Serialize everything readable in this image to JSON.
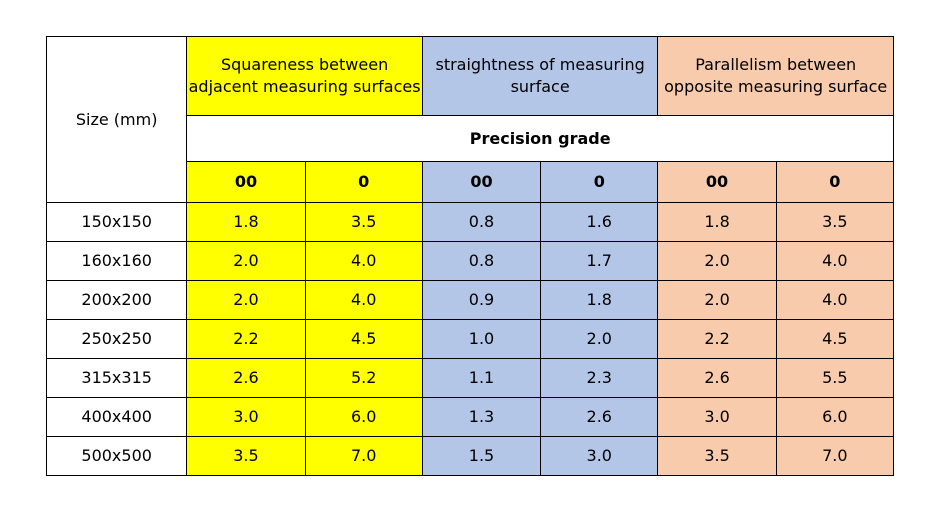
{
  "colors": {
    "squareness": "#ffff00",
    "straightness": "#b4c6e7",
    "parallelism": "#f8cbad",
    "white": "#ffffff",
    "border": "#000000"
  },
  "header": {
    "size": "Size (mm)",
    "groups": [
      "Squareness between adjacent measuring surfaces",
      "straightness of measuring surface",
      "Parallelism between opposite measuring surface"
    ],
    "precision": "Precision grade",
    "grades": [
      "00",
      "0",
      "00",
      "0",
      "00",
      "0"
    ]
  },
  "rows": [
    {
      "size": "150x150",
      "values": [
        "1.8",
        "3.5",
        "0.8",
        "1.6",
        "1.8",
        "3.5"
      ]
    },
    {
      "size": "160x160",
      "values": [
        "2.0",
        "4.0",
        "0.8",
        "1.7",
        "2.0",
        "4.0"
      ]
    },
    {
      "size": "200x200",
      "values": [
        "2.0",
        "4.0",
        "0.9",
        "1.8",
        "2.0",
        "4.0"
      ]
    },
    {
      "size": "250x250",
      "values": [
        "2.2",
        "4.5",
        "1.0",
        "2.0",
        "2.2",
        "4.5"
      ]
    },
    {
      "size": "315x315",
      "values": [
        "2.6",
        "5.2",
        "1.1",
        "2.3",
        "2.6",
        "5.5"
      ]
    },
    {
      "size": "400x400",
      "values": [
        "3.0",
        "6.0",
        "1.3",
        "2.6",
        "3.0",
        "6.0"
      ]
    },
    {
      "size": "500x500",
      "values": [
        "3.5",
        "7.0",
        "1.5",
        "3.0",
        "3.5",
        "7.0"
      ]
    }
  ]
}
